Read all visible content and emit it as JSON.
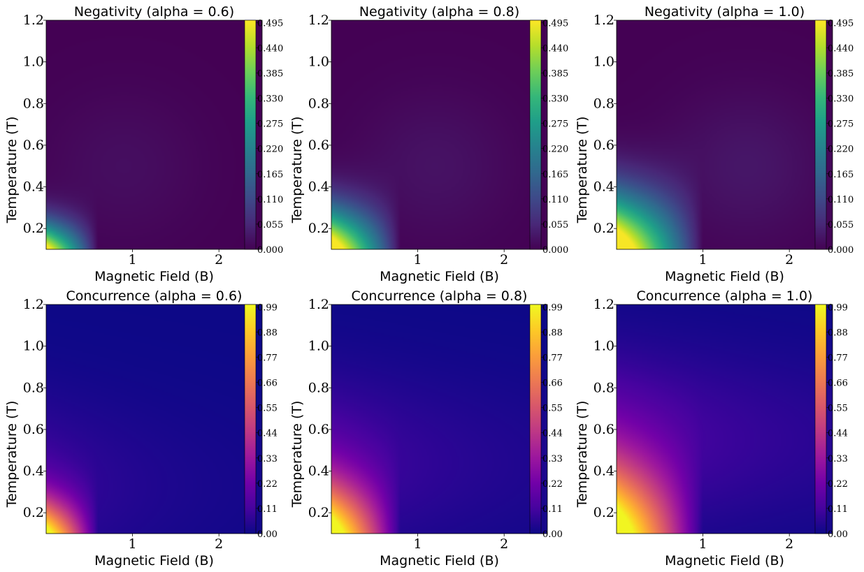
{
  "colormaps": {
    "viridis": [
      "#440154",
      "#482878",
      "#3e4989",
      "#31688e",
      "#26828e",
      "#1f9e89",
      "#35b779",
      "#6ece58",
      "#b5de2b",
      "#fde725"
    ],
    "plasma": [
      "#0d0887",
      "#46039f",
      "#7201a8",
      "#9c179e",
      "#bd3786",
      "#d8576b",
      "#ed7953",
      "#fb9f3a",
      "#fdca26",
      "#f0f921"
    ]
  },
  "chart_data": [
    {
      "type": "heatmap",
      "title": "Negativity (alpha = 0.6)",
      "xlabel": "Magnetic Field (B)",
      "ylabel": "Temperature (T)",
      "alpha": 0.6,
      "metric": "negativity",
      "colormap": "viridis",
      "xlim": [
        0.0,
        2.5
      ],
      "ylim": [
        0.1,
        1.2
      ],
      "x_ticks": [
        1,
        2
      ],
      "y_ticks": [
        0.2,
        0.4,
        0.6,
        0.8,
        1.0,
        1.2
      ],
      "y_tick_labels": [
        "0.2",
        "0.4",
        "0.6",
        "0.8",
        "1.0",
        "1.2"
      ],
      "colorbar_ticks": [
        "0.000",
        "0.055",
        "0.110",
        "0.165",
        "0.220",
        "0.275",
        "0.330",
        "0.385",
        "0.440",
        "0.495"
      ],
      "colorbar_range": [
        0.0,
        0.5
      ]
    },
    {
      "type": "heatmap",
      "title": "Negativity (alpha = 0.8)",
      "xlabel": "Magnetic Field (B)",
      "ylabel": "Temperature (T)",
      "alpha": 0.8,
      "metric": "negativity",
      "colormap": "viridis",
      "xlim": [
        0.0,
        2.5
      ],
      "ylim": [
        0.1,
        1.2
      ],
      "x_ticks": [
        1,
        2
      ],
      "y_ticks": [
        0.2,
        0.4,
        0.6,
        0.8,
        1.0,
        1.2
      ],
      "y_tick_labels": [
        "0.2",
        "0.4",
        "0.6",
        "0.8",
        "1.0",
        "1.2"
      ],
      "colorbar_ticks": [
        "0.000",
        "0.055",
        "0.110",
        "0.165",
        "0.220",
        "0.275",
        "0.330",
        "0.385",
        "0.440",
        "0.495"
      ],
      "colorbar_range": [
        0.0,
        0.5
      ]
    },
    {
      "type": "heatmap",
      "title": "Negativity (alpha = 1.0)",
      "xlabel": "Magnetic Field (B)",
      "ylabel": "Temperature (T)",
      "alpha": 1.0,
      "metric": "negativity",
      "colormap": "viridis",
      "xlim": [
        0.0,
        2.5
      ],
      "ylim": [
        0.1,
        1.2
      ],
      "x_ticks": [
        1,
        2
      ],
      "y_ticks": [
        0.2,
        0.4,
        0.6,
        0.8,
        1.0,
        1.2
      ],
      "y_tick_labels": [
        "0.2",
        "0.4",
        "0.6",
        "0.8",
        "1.0",
        "1.2"
      ],
      "colorbar_ticks": [
        "0.000",
        "0.055",
        "0.110",
        "0.165",
        "0.220",
        "0.275",
        "0.330",
        "0.385",
        "0.440",
        "0.495"
      ],
      "colorbar_range": [
        0.0,
        0.5
      ]
    },
    {
      "type": "heatmap",
      "title": "Concurrence (alpha = 0.6)",
      "xlabel": "Magnetic Field (B)",
      "ylabel": "Temperature (T)",
      "alpha": 0.6,
      "metric": "concurrence",
      "colormap": "plasma",
      "xlim": [
        0.0,
        2.5
      ],
      "ylim": [
        0.1,
        1.2
      ],
      "x_ticks": [
        1,
        2
      ],
      "y_ticks": [
        0.2,
        0.4,
        0.6,
        0.8,
        1.0,
        1.2
      ],
      "y_tick_labels": [
        "0.2",
        "0.4",
        "0.6",
        "0.8",
        "1.0",
        "1.2"
      ],
      "colorbar_ticks": [
        "0.00",
        "0.11",
        "0.22",
        "0.33",
        "0.44",
        "0.55",
        "0.66",
        "0.77",
        "0.88",
        "0.99"
      ],
      "colorbar_range": [
        0.0,
        1.0
      ]
    },
    {
      "type": "heatmap",
      "title": "Concurrence (alpha = 0.8)",
      "xlabel": "Magnetic Field (B)",
      "ylabel": "Temperature (T)",
      "alpha": 0.8,
      "metric": "concurrence",
      "colormap": "plasma",
      "xlim": [
        0.0,
        2.5
      ],
      "ylim": [
        0.1,
        1.2
      ],
      "x_ticks": [
        1,
        2
      ],
      "y_ticks": [
        0.2,
        0.4,
        0.6,
        0.8,
        1.0,
        1.2
      ],
      "y_tick_labels": [
        "0.2",
        "0.4",
        "0.6",
        "0.8",
        "1.0",
        "1.2"
      ],
      "colorbar_ticks": [
        "0.00",
        "0.11",
        "0.22",
        "0.33",
        "0.44",
        "0.55",
        "0.66",
        "0.77",
        "0.88",
        "0.99"
      ],
      "colorbar_range": [
        0.0,
        1.0
      ]
    },
    {
      "type": "heatmap",
      "title": "Concurrence (alpha = 1.0)",
      "xlabel": "Magnetic Field (B)",
      "ylabel": "Temperature (T)",
      "alpha": 1.0,
      "metric": "concurrence",
      "colormap": "plasma",
      "xlim": [
        0.0,
        2.5
      ],
      "ylim": [
        0.1,
        1.2
      ],
      "x_ticks": [
        1,
        2
      ],
      "y_ticks": [
        0.2,
        0.4,
        0.6,
        0.8,
        1.0,
        1.2
      ],
      "y_tick_labels": [
        "0.2",
        "0.4",
        "0.6",
        "0.8",
        "1.0",
        "1.2"
      ],
      "colorbar_ticks": [
        "0.00",
        "0.11",
        "0.22",
        "0.33",
        "0.44",
        "0.55",
        "0.66",
        "0.77",
        "0.88",
        "0.99"
      ],
      "colorbar_range": [
        0.0,
        1.0
      ]
    }
  ]
}
